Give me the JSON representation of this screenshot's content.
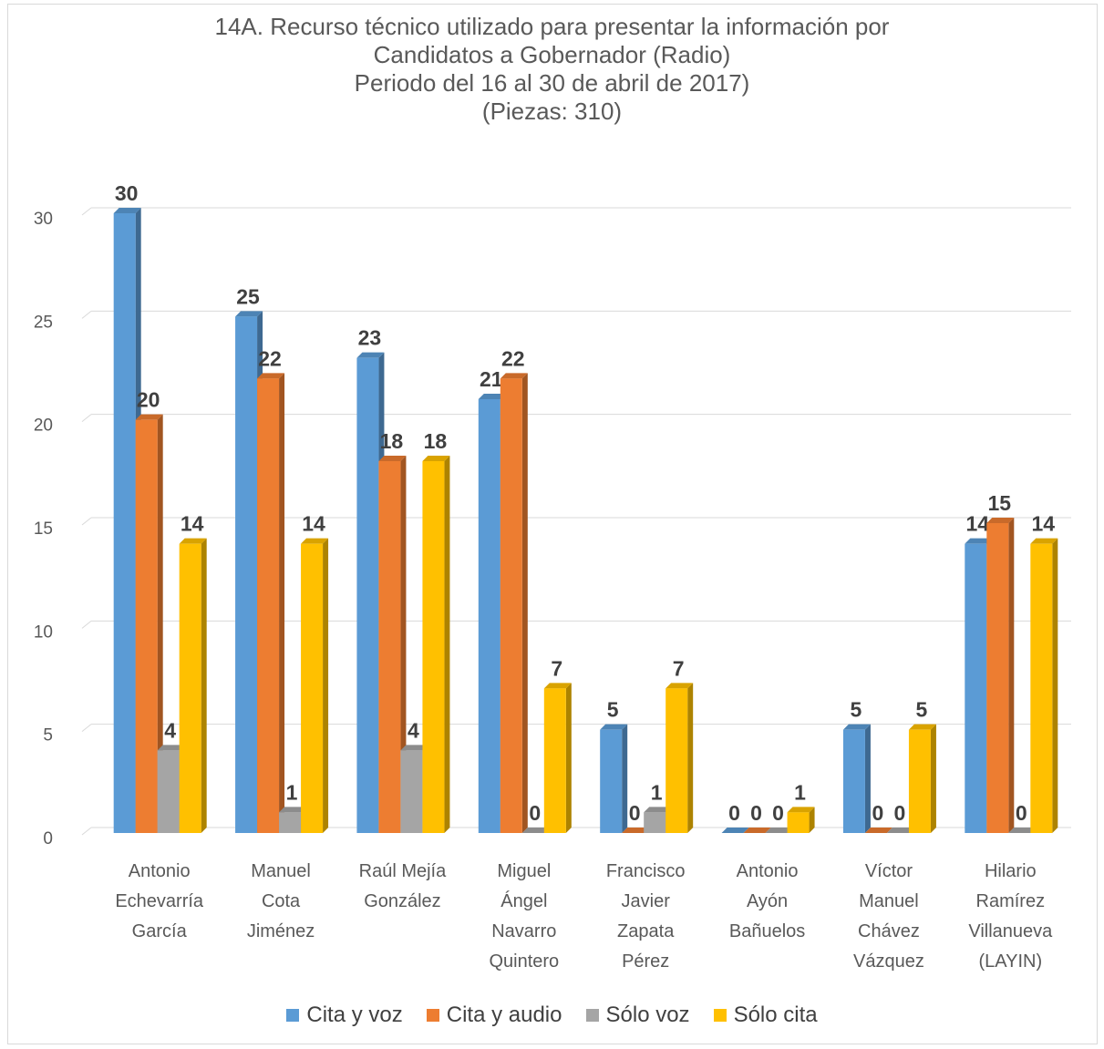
{
  "chart_data": {
    "type": "bar",
    "title_lines": [
      "14A. Recurso técnico utilizado para presentar la información por",
      "Candidatos a Gobernador  (Radio)",
      "Periodo del 16 al 30 de abril de 2017)",
      "(Piezas: 310)"
    ],
    "categories": [
      [
        "Antonio",
        "Echevarría",
        "García"
      ],
      [
        "Manuel",
        "Cota",
        "Jiménez"
      ],
      [
        "Raúl Mejía",
        "González"
      ],
      [
        "Miguel",
        "Ángel",
        "Navarro",
        "Quintero"
      ],
      [
        "Francisco",
        "Javier",
        "Zapata",
        "Pérez"
      ],
      [
        "Antonio",
        "Ayón",
        "Bañuelos"
      ],
      [
        "Víctor",
        "Manuel",
        "Chávez",
        "Vázquez"
      ],
      [
        "Hilario",
        "Ramírez",
        "Villanueva",
        "(LAYIN)"
      ]
    ],
    "series": [
      {
        "name": "Cita y voz",
        "color": "#5B9BD5",
        "values": [
          30,
          25,
          23,
          21,
          5,
          0,
          5,
          14
        ]
      },
      {
        "name": "Cita y audio",
        "color": "#ED7D31",
        "values": [
          20,
          22,
          18,
          22,
          0,
          0,
          0,
          15
        ]
      },
      {
        "name": "Sólo voz",
        "color": "#A5A5A5",
        "values": [
          4,
          1,
          4,
          0,
          1,
          0,
          0,
          0
        ]
      },
      {
        "name": "Sólo cita",
        "color": "#FFC000",
        "values": [
          14,
          14,
          18,
          7,
          7,
          1,
          5,
          14
        ]
      }
    ],
    "ylim": [
      0,
      30
    ],
    "yticks": [
      0,
      5,
      10,
      15,
      20,
      25,
      30
    ],
    "grid": true,
    "legend_position": "bottom",
    "three_d": true
  }
}
